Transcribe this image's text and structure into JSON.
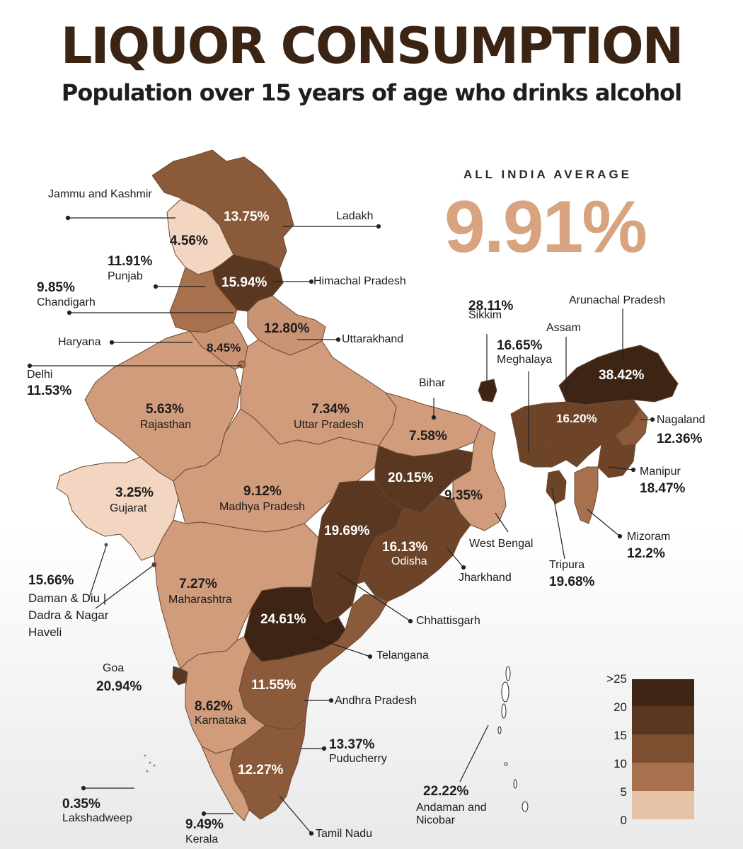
{
  "title": "LIQUOR CONSUMPTION",
  "subtitle": "Population over 15 years of age who drinks alcohol",
  "average": {
    "label": "ALL INDIA AVERAGE",
    "value": "9.91%"
  },
  "colors": {
    "title": "#3b2414",
    "average": "#d8a37f",
    "scale": [
      "#e6c2a6",
      "#cf9f7f",
      "#a8714e",
      "#7d4e2f",
      "#5a3720",
      "#3d2414"
    ]
  },
  "legend": {
    "ticks": [
      ">25",
      "20",
      "15",
      "10",
      "5",
      "0"
    ]
  },
  "regions": [
    {
      "id": "jk",
      "name": "Jammu and Kashmir",
      "value": "4.56%"
    },
    {
      "id": "ladakh",
      "name": "Ladakh",
      "value": "13.75%"
    },
    {
      "id": "hp",
      "name": "Himachal Pradesh",
      "value": "15.94%"
    },
    {
      "id": "punjab",
      "name": "Punjab",
      "value": "11.91%"
    },
    {
      "id": "chandigarh",
      "name": "Chandigarh",
      "value": "9.85%"
    },
    {
      "id": "haryana",
      "name": "Haryana",
      "value": "8.45%"
    },
    {
      "id": "uk",
      "name": "Uttarakhand",
      "value": "12.80%"
    },
    {
      "id": "delhi",
      "name": "Delhi",
      "value": "11.53%"
    },
    {
      "id": "raj",
      "name": "Rajasthan",
      "value": "5.63%"
    },
    {
      "id": "up",
      "name": "Uttar Pradesh",
      "value": "7.34%"
    },
    {
      "id": "bihar",
      "name": "Bihar",
      "value": "7.58%"
    },
    {
      "id": "sikkim",
      "name": "Sikkim",
      "value": "28.11%"
    },
    {
      "id": "arunachal",
      "name": "Arunachal Pradesh",
      "value": "38.42%"
    },
    {
      "id": "assam",
      "name": "Assam",
      "value": "16.20%"
    },
    {
      "id": "meghalaya",
      "name": "Meghalaya",
      "value": "16.65%"
    },
    {
      "id": "nagaland",
      "name": "Nagaland",
      "value": "12.36%"
    },
    {
      "id": "manipur",
      "name": "Manipur",
      "value": "18.47%"
    },
    {
      "id": "mizoram",
      "name": "Mizoram",
      "value": "12.2%"
    },
    {
      "id": "tripura",
      "name": "Tripura",
      "value": "19.68%"
    },
    {
      "id": "gujarat",
      "name": "Gujarat",
      "value": "3.25%"
    },
    {
      "id": "mp",
      "name": "Madhya Pradesh",
      "value": "9.12%"
    },
    {
      "id": "jharkhand",
      "name": "Jharkhand",
      "value": "20.15%"
    },
    {
      "id": "wb",
      "name": "West Bengal",
      "value": "9.35%"
    },
    {
      "id": "chhattisgarh",
      "name": "Chhattisgarh",
      "value": "19.69%"
    },
    {
      "id": "odisha",
      "name": "Odisha",
      "value": "16.13%"
    },
    {
      "id": "daman",
      "name": "Daman & Diu | Dadra & Nagar Haveli",
      "value": "15.66%"
    },
    {
      "id": "maha",
      "name": "Maharashtra",
      "value": "7.27%"
    },
    {
      "id": "telangana",
      "name": "Telangana",
      "value": "24.61%"
    },
    {
      "id": "goa",
      "name": "Goa",
      "value": "20.94%"
    },
    {
      "id": "ap",
      "name": "Andhra Pradesh",
      "value": "11.55%"
    },
    {
      "id": "karnataka",
      "name": "Karnataka",
      "value": "8.62%"
    },
    {
      "id": "puducherry",
      "name": "Puducherry",
      "value": "13.37%"
    },
    {
      "id": "tn",
      "name": "Tamil Nadu",
      "value": "12.27%"
    },
    {
      "id": "kerala",
      "name": "Kerala",
      "value": "9.49%"
    },
    {
      "id": "lakshadweep",
      "name": "Lakshadweep",
      "value": "0.35%"
    },
    {
      "id": "andaman",
      "name": "Andaman and Nicobar",
      "value": "22.22%"
    }
  ]
}
